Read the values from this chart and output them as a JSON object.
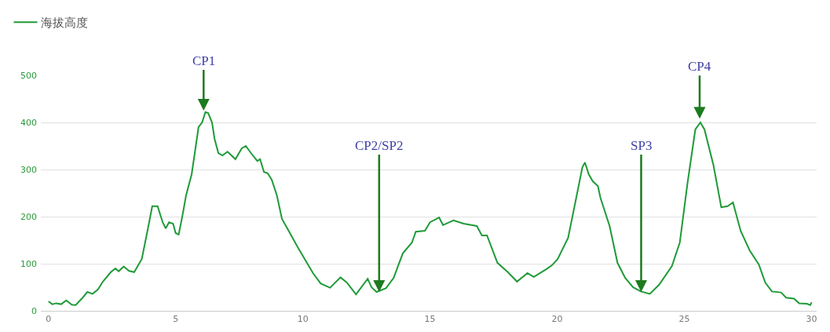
{
  "chart_data": {
    "type": "line",
    "legend": "top left",
    "grid": "y",
    "marker": "none",
    "line_style": "solid",
    "xlim": [
      -0.3,
      30.2
    ],
    "xticks": [
      0,
      5,
      10,
      15,
      20,
      25,
      30
    ],
    "ylim": [
      0,
      500
    ],
    "yticks": [
      0,
      100,
      200,
      300,
      400,
      500
    ],
    "annotations": [
      {
        "text": "CP1",
        "x": 6.1,
        "y": 425
      },
      {
        "text": "CP2/SP2",
        "x": 13.0,
        "y": 40
      },
      {
        "text": "SP3",
        "x": 23.3,
        "y": 40
      },
      {
        "text": "CP4",
        "x": 25.6,
        "y": 408
      }
    ],
    "series": [
      {
        "name": "海拔高度",
        "color": "#1f9a38",
        "x": [
          0,
          0.15,
          0.3,
          0.5,
          0.7,
          0.92,
          1.07,
          1.33,
          1.53,
          1.73,
          1.94,
          2.14,
          2.45,
          2.63,
          2.76,
          2.96,
          3.16,
          3.37,
          3.67,
          3.93,
          4.08,
          4.29,
          4.49,
          4.61,
          4.74,
          4.9,
          5.0,
          5.12,
          5.26,
          5.41,
          5.63,
          5.9,
          6.04,
          6.17,
          6.28,
          6.43,
          6.53,
          6.68,
          6.84,
          7.04,
          7.35,
          7.6,
          7.76,
          7.96,
          8.21,
          8.32,
          8.47,
          8.62,
          8.78,
          8.98,
          9.18,
          9.39,
          9.8,
          10.4,
          10.7,
          11.07,
          11.48,
          11.73,
          12.09,
          12.55,
          12.7,
          12.9,
          13.27,
          13.57,
          13.93,
          14.29,
          14.44,
          14.8,
          15.0,
          15.36,
          15.51,
          15.92,
          16.33,
          16.84,
          17.04,
          17.24,
          17.65,
          18.06,
          18.42,
          18.83,
          19.08,
          19.59,
          19.8,
          20.02,
          20.43,
          20.73,
          20.99,
          21.09,
          21.24,
          21.4,
          21.6,
          21.7,
          22.06,
          22.37,
          22.67,
          22.98,
          23.29,
          23.64,
          24.0,
          24.51,
          24.82,
          25.12,
          25.43,
          25.63,
          25.79,
          26.14,
          26.45,
          26.7,
          26.91,
          27.21,
          27.57,
          27.93,
          28.18,
          28.44,
          28.8,
          29.0,
          29.31,
          29.51,
          29.82,
          29.95,
          30.0
        ],
        "values": [
          20,
          14,
          16,
          14,
          22,
          13,
          12,
          27,
          40,
          36,
          45,
          62,
          82,
          90,
          84,
          94,
          85,
          82,
          110,
          180,
          222,
          222,
          188,
          175,
          188,
          185,
          165,
          162,
          200,
          245,
          290,
          390,
          400,
          422,
          420,
          400,
          365,
          335,
          330,
          338,
          322,
          345,
          350,
          335,
          318,
          322,
          295,
          292,
          278,
          245,
          195,
          175,
          135,
          80,
          58,
          49,
          71,
          60,
          35,
          68,
          50,
          40,
          48,
          70,
          122,
          145,
          168,
          170,
          188,
          198,
          182,
          192,
          185,
          180,
          160,
          160,
          102,
          82,
          62,
          80,
          72,
          89,
          97,
          110,
          155,
          235,
          305,
          315,
          290,
          275,
          265,
          240,
          180,
          102,
          70,
          50,
          41,
          36,
          55,
          95,
          145,
          270,
          385,
          400,
          385,
          310,
          220,
          222,
          230,
          170,
          128,
          98,
          60,
          41,
          39,
          28,
          26,
          16,
          15,
          12,
          18
        ]
      }
    ]
  }
}
